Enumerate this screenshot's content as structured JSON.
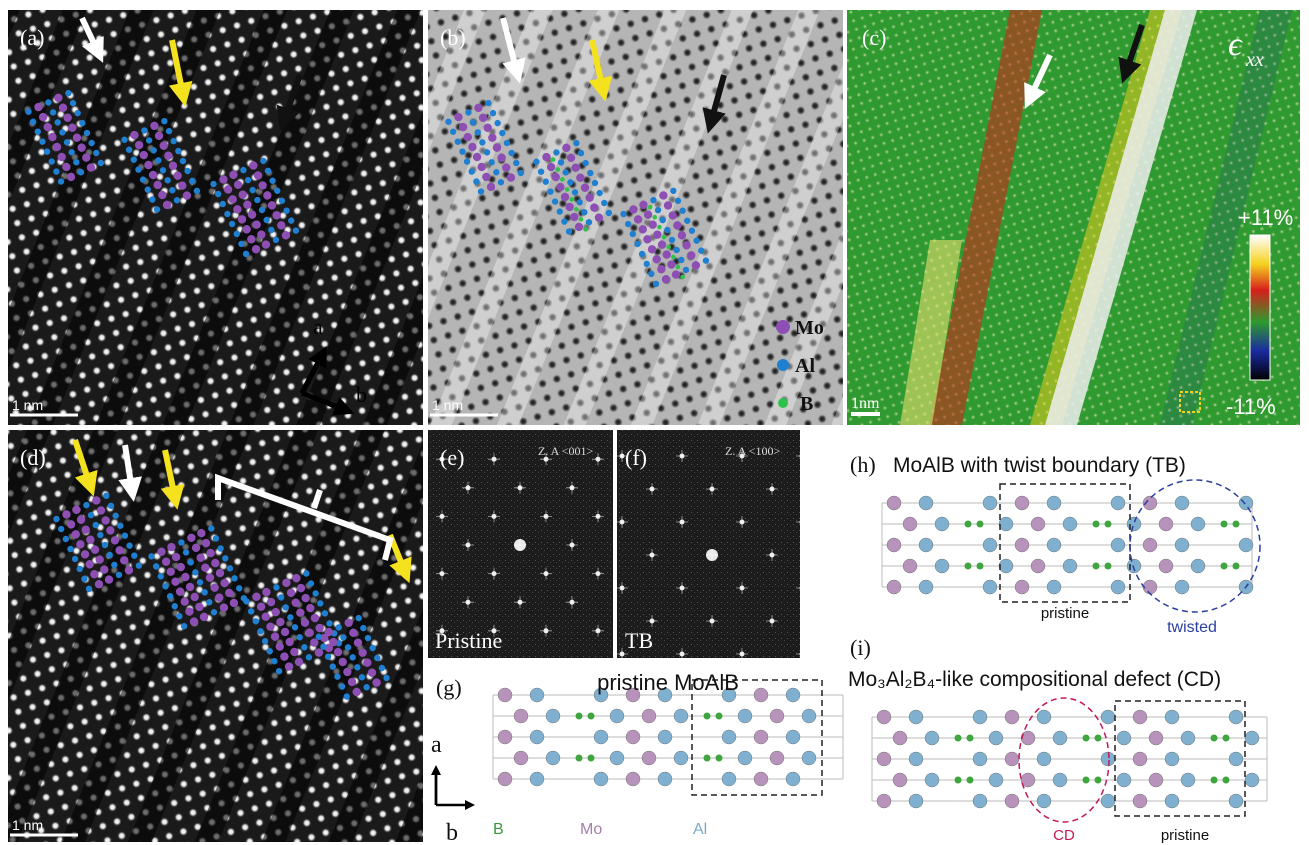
{
  "panels": {
    "a": {
      "label": "(a)",
      "scale": "1 nm",
      "axis_a": "a",
      "axis_b": "b"
    },
    "b": {
      "label": "(b)",
      "scale": "1 nm",
      "legend": [
        "Mo",
        "Al",
        "B"
      ]
    },
    "c": {
      "label": "(c)",
      "symbol": "ϵ",
      "subscript": "xx",
      "max": "+11%",
      "min": "-11%",
      "scale": "1nm"
    },
    "d": {
      "label": "(d)",
      "scale": "1 nm"
    },
    "e": {
      "label": "(e)",
      "zone": "Z. A <001>",
      "name": "Pristine"
    },
    "f": {
      "label": "(f)",
      "zone": "Z. A <100>",
      "name": "TB"
    },
    "g": {
      "label": "(g)",
      "title": "pristine MoAlB",
      "axis_a": "a",
      "axis_b": "b",
      "legend": [
        "B",
        "Mo",
        "Al"
      ]
    },
    "h": {
      "label": "(h)",
      "title": "MoAlB with twist boundary (TB)",
      "box": "pristine",
      "circle": "twisted"
    },
    "i": {
      "label": "(i)",
      "title": "Mo₃Al₂B₄-like compositional defect (CD)",
      "circle": "CD",
      "box": "pristine"
    }
  }
}
